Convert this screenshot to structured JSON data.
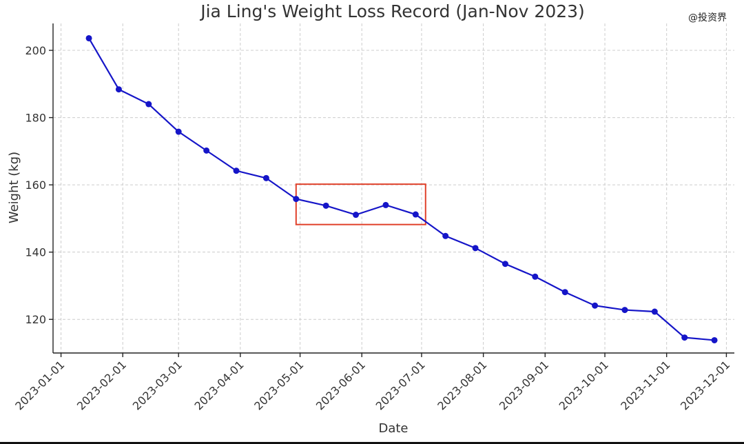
{
  "watermark": "@投资界",
  "chart_data": {
    "type": "line",
    "title": "Jia Ling's Weight Loss Record (Jan-Nov 2023)",
    "xlabel": "Date",
    "ylabel": "Weight (kg)",
    "x_axis_type": "date",
    "xlim": [
      "2022-12-28",
      "2023-12-05"
    ],
    "ylim": [
      110,
      208
    ],
    "x_ticks": [
      "2023-01-01",
      "2023-02-01",
      "2023-03-01",
      "2023-04-01",
      "2023-05-01",
      "2023-06-01",
      "2023-07-01",
      "2023-08-01",
      "2023-09-01",
      "2023-10-01",
      "2023-11-01",
      "2023-12-01"
    ],
    "y_ticks": [
      120,
      140,
      160,
      180,
      200
    ],
    "grid": true,
    "marker": "circle",
    "line_color": "#1515c8",
    "highlight": {
      "color": "#e0402a",
      "x_range": [
        "2023-04-29",
        "2023-07-03"
      ],
      "y_range": [
        148.2,
        160.2
      ]
    },
    "series": [
      {
        "x": [
          "2023-01-15",
          "2023-01-30",
          "2023-02-14",
          "2023-03-01",
          "2023-03-15",
          "2023-03-30",
          "2023-04-14",
          "2023-04-29",
          "2023-05-14",
          "2023-05-29",
          "2023-06-13",
          "2023-06-28",
          "2023-07-13",
          "2023-07-28",
          "2023-08-12",
          "2023-08-27",
          "2023-09-11",
          "2023-09-26",
          "2023-10-11",
          "2023-10-26",
          "2023-11-10",
          "2023-11-25"
        ],
        "values": [
          203.6,
          188.4,
          184.0,
          175.8,
          170.2,
          164.2,
          162.0,
          155.8,
          153.8,
          151.1,
          154.0,
          151.2,
          144.8,
          141.2,
          136.5,
          132.7,
          128.1,
          124.1,
          122.8,
          122.3,
          114.6,
          113.8
        ]
      }
    ]
  }
}
